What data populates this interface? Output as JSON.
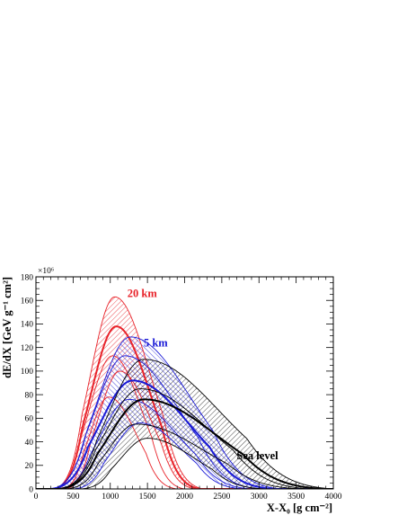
{
  "chart_data": {
    "type": "area",
    "title": "",
    "xlabel": "X-X₀ [g cm⁻²]",
    "ylabel": "dE/dX [GeV g⁻¹ cm²]",
    "y_exponent_label": "×10⁶",
    "xlim": [
      0,
      4000
    ],
    "ylim": [
      0,
      180
    ],
    "x_ticks": [
      0,
      500,
      1000,
      1500,
      2000,
      2500,
      3000,
      3500,
      4000
    ],
    "x_tick_labels": [
      "0",
      "500",
      "1000",
      "1500",
      "2000",
      "2500",
      "3000",
      "3500",
      "4000"
    ],
    "y_ticks": [
      0,
      20,
      40,
      60,
      80,
      100,
      120,
      140,
      160,
      180
    ],
    "y_tick_labels": [
      "0",
      "20",
      "40",
      "60",
      "80",
      "100",
      "120",
      "140",
      "160",
      "180"
    ],
    "grid": false,
    "series": [
      {
        "name": "20 km",
        "color": "#e8232a",
        "hatch": "down",
        "central": {
          "peak_x": 1080,
          "peak_y": 138,
          "start_x": 250,
          "end_x": 2200
        },
        "upper": {
          "peak_x": 1060,
          "peak_y": 163,
          "start_x": 250,
          "end_x": 2250
        },
        "lower": {
          "peak_x": 1130,
          "peak_y": 100,
          "start_x": 400,
          "end_x": 2150
        },
        "inner_band": {
          "low_peak_x": 980,
          "low_peak_y": 78,
          "high_peak_x": 1030,
          "high_peak_y": 113
        }
      },
      {
        "name": "5 km",
        "color": "#1a1ad6",
        "hatch": "up",
        "central": {
          "peak_x": 1300,
          "peak_y": 92,
          "start_x": 200,
          "end_x": 3200
        },
        "upper": {
          "peak_x": 1270,
          "peak_y": 129,
          "start_x": 200,
          "end_x": 3300
        },
        "lower": {
          "peak_x": 1400,
          "peak_y": 56,
          "start_x": 500,
          "end_x": 2800
        },
        "inner_band": {
          "low_peak_x": 1250,
          "low_peak_y": 76,
          "high_peak_x": 1200,
          "high_peak_y": 113
        }
      },
      {
        "name": "Sea level",
        "color": "#000000",
        "hatch": "down",
        "central": {
          "peak_x": 1450,
          "peak_y": 76,
          "start_x": 300,
          "end_x": 3900
        },
        "upper": {
          "peak_x": 1450,
          "peak_y": 110,
          "start_x": 300,
          "end_x": 4000
        },
        "lower": {
          "peak_x": 1500,
          "peak_y": 43,
          "start_x": 600,
          "end_x": 3100
        },
        "inner_band": {
          "low_peak_x": 1350,
          "low_peak_y": 55,
          "high_peak_x": 1400,
          "high_peak_y": 85
        }
      }
    ],
    "annotations": [
      {
        "text": "20 km",
        "x": 1230,
        "y": 163,
        "color": "#e8232a"
      },
      {
        "text": "5 km",
        "x": 1450,
        "y": 121,
        "color": "#1a1ad6"
      },
      {
        "text": "Sea level",
        "x": 2700,
        "y": 25,
        "color": "#000000"
      }
    ]
  }
}
